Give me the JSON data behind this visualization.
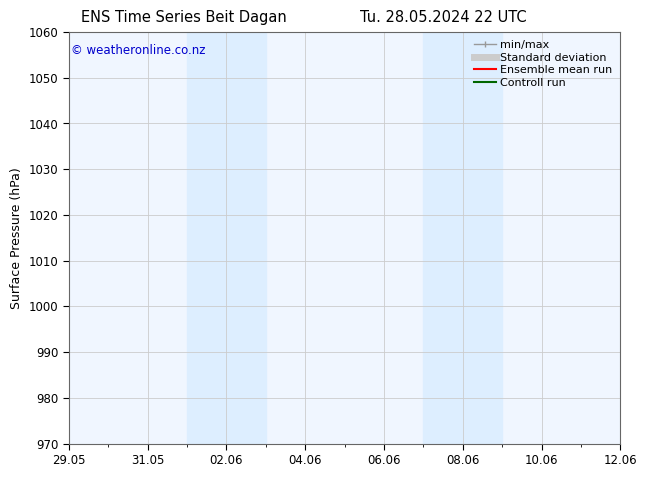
{
  "title_left": "ENS Time Series Beit Dagan",
  "title_right": "Tu. 28.05.2024 22 UTC",
  "ylabel": "Surface Pressure (hPa)",
  "ylim": [
    970,
    1060
  ],
  "yticks": [
    970,
    980,
    990,
    1000,
    1010,
    1020,
    1030,
    1040,
    1050,
    1060
  ],
  "xtick_labels": [
    "29.05",
    "31.05",
    "02.06",
    "04.06",
    "06.06",
    "08.06",
    "10.06",
    "12.06"
  ],
  "xtick_positions": [
    0,
    2,
    4,
    6,
    8,
    10,
    12,
    14
  ],
  "shaded_regions": [
    {
      "x_start": 3.0,
      "x_end": 5.0
    },
    {
      "x_start": 9.0,
      "x_end": 11.0
    }
  ],
  "shaded_color": "#ddeeff",
  "plot_bg_color": "#f0f6ff",
  "copyright_text": "© weatheronline.co.nz",
  "copyright_color": "#0000cc",
  "legend_labels": [
    "min/max",
    "Standard deviation",
    "Ensemble mean run",
    "Controll run"
  ],
  "legend_colors": [
    "#999999",
    "#cccccc",
    "#ff0000",
    "#006600"
  ],
  "legend_lws": [
    1.0,
    5,
    1.5,
    1.5
  ],
  "grid_color": "#cccccc",
  "spine_color": "#666666",
  "background_color": "#ffffff",
  "x_start": 0,
  "x_end": 14,
  "title_fontsize": 10.5,
  "label_fontsize": 9,
  "tick_fontsize": 8.5,
  "legend_fontsize": 8,
  "copyright_fontsize": 8.5
}
